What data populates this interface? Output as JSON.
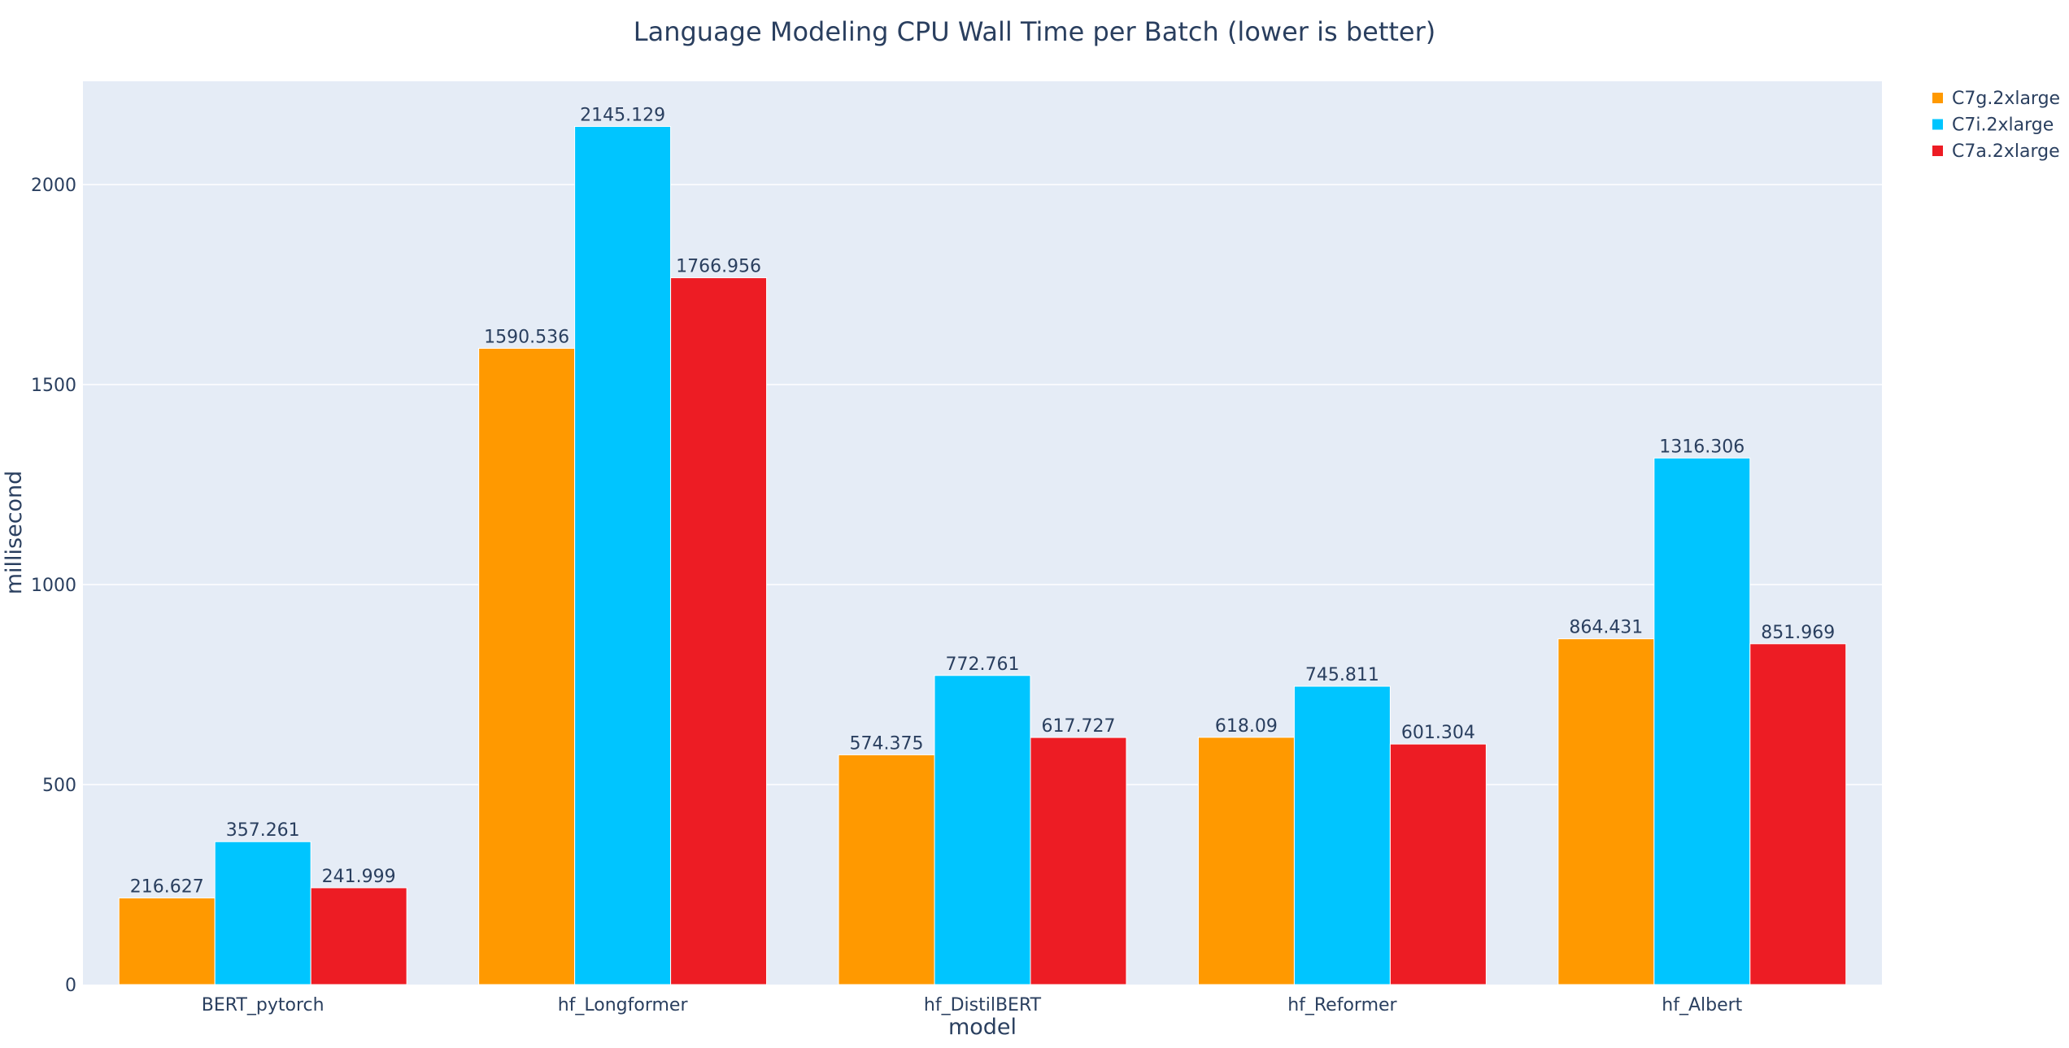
{
  "chart_data": {
    "type": "bar",
    "title": "Language Modeling CPU Wall Time per Batch (lower is better)",
    "xlabel": "model",
    "ylabel": "millisecond",
    "categories": [
      "BERT_pytorch",
      "hf_Longformer",
      "hf_DistilBERT",
      "hf_Reformer",
      "hf_Albert"
    ],
    "series": [
      {
        "name": "C7g.2xlarge",
        "color": "#ff9900",
        "values": [
          216.627,
          1590.536,
          574.375,
          618.09,
          864.431
        ],
        "labels": [
          "216.627",
          "1590.536",
          "574.375",
          "618.09",
          "864.431"
        ]
      },
      {
        "name": "C7i.2xlarge",
        "color": "#00c5ff",
        "values": [
          357.261,
          2145.129,
          772.761,
          745.811,
          1316.306
        ],
        "labels": [
          "357.261",
          "2145.129",
          "772.761",
          "745.811",
          "1316.306"
        ]
      },
      {
        "name": "C7a.2xlarge",
        "color": "#ed1c24",
        "values": [
          241.999,
          1766.956,
          617.727,
          601.304,
          851.969
        ],
        "labels": [
          "241.999",
          "1766.956",
          "617.727",
          "601.304",
          "851.969"
        ]
      }
    ],
    "ylim": [
      0,
      2258
    ],
    "yticks": [
      0,
      500,
      1000,
      1500,
      2000
    ],
    "grid": true,
    "plot_bgcolor": "#e5ecf6",
    "legend_position": "top-right"
  }
}
